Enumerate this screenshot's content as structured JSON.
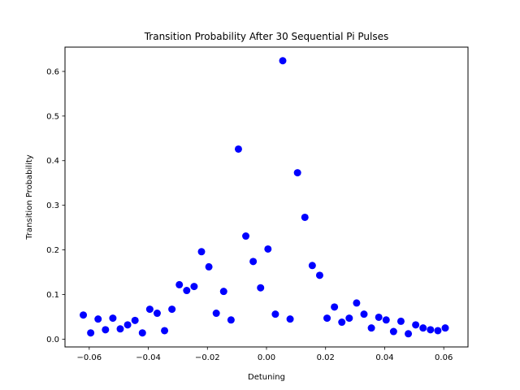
{
  "chart_data": {
    "type": "scatter",
    "title": "Transition Probability After 30 Sequential Pi Pulses",
    "xlabel": "Detuning",
    "ylabel": "Transition Probability",
    "xlim": [
      -0.0682,
      0.0682
    ],
    "ylim": [
      -0.0175,
      0.6545
    ],
    "xticks": [
      -0.06,
      -0.04,
      -0.02,
      0.0,
      0.02,
      0.04,
      0.06
    ],
    "xtick_labels": [
      "−0.06",
      "−0.04",
      "−0.02",
      "0.00",
      "0.02",
      "0.04",
      "0.06"
    ],
    "yticks": [
      0.0,
      0.1,
      0.2,
      0.3,
      0.4,
      0.5,
      0.6
    ],
    "ytick_labels": [
      "0.0",
      "0.1",
      "0.2",
      "0.3",
      "0.4",
      "0.5",
      "0.6"
    ],
    "grid": false,
    "marker_color": "#0000ff",
    "series": [
      {
        "points": [
          [
            -0.062,
            0.054
          ],
          [
            -0.0595,
            0.014
          ],
          [
            -0.057,
            0.045
          ],
          [
            -0.0545,
            0.021
          ],
          [
            -0.052,
            0.047
          ],
          [
            -0.0495,
            0.023
          ],
          [
            -0.047,
            0.032
          ],
          [
            -0.0445,
            0.042
          ],
          [
            -0.042,
            0.014
          ],
          [
            -0.0395,
            0.067
          ],
          [
            -0.037,
            0.058
          ],
          [
            -0.0345,
            0.019
          ],
          [
            -0.032,
            0.067
          ],
          [
            -0.0295,
            0.122
          ],
          [
            -0.027,
            0.109
          ],
          [
            -0.0245,
            0.118
          ],
          [
            -0.022,
            0.196
          ],
          [
            -0.0195,
            0.162
          ],
          [
            -0.017,
            0.058
          ],
          [
            -0.0145,
            0.107
          ],
          [
            -0.012,
            0.043
          ],
          [
            -0.0095,
            0.426
          ],
          [
            -0.007,
            0.231
          ],
          [
            -0.0045,
            0.174
          ],
          [
            -0.002,
            0.115
          ],
          [
            0.0005,
            0.202
          ],
          [
            0.003,
            0.056
          ],
          [
            0.0055,
            0.624
          ],
          [
            0.008,
            0.045
          ],
          [
            0.0105,
            0.373
          ],
          [
            0.013,
            0.273
          ],
          [
            0.0155,
            0.165
          ],
          [
            0.018,
            0.143
          ],
          [
            0.0205,
            0.047
          ],
          [
            0.023,
            0.072
          ],
          [
            0.0255,
            0.038
          ],
          [
            0.028,
            0.047
          ],
          [
            0.0305,
            0.081
          ],
          [
            0.033,
            0.056
          ],
          [
            0.0355,
            0.025
          ],
          [
            0.038,
            0.049
          ],
          [
            0.0405,
            0.043
          ],
          [
            0.043,
            0.017
          ],
          [
            0.0455,
            0.04
          ],
          [
            0.048,
            0.012
          ],
          [
            0.0505,
            0.032
          ],
          [
            0.053,
            0.025
          ],
          [
            0.0555,
            0.021
          ],
          [
            0.058,
            0.019
          ],
          [
            0.0605,
            0.025
          ]
        ]
      }
    ]
  }
}
